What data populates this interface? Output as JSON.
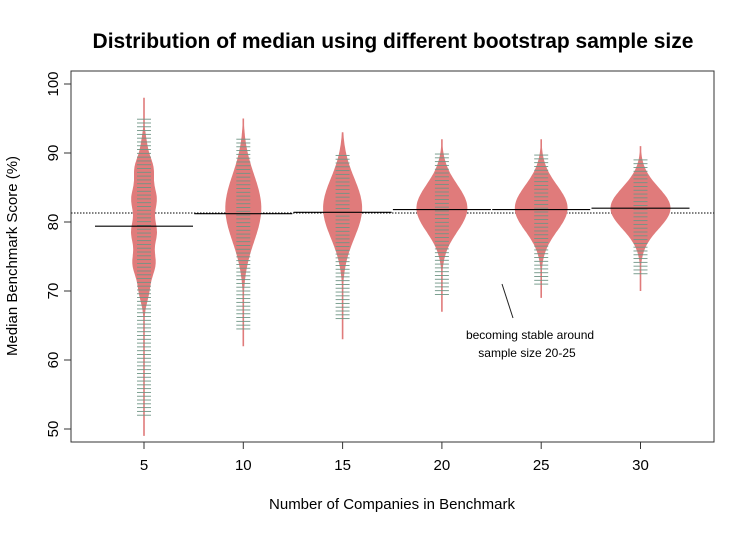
{
  "chart_data": {
    "type": "beanplot",
    "title": "Distribution of median using different bootstrap sample size",
    "xlabel": "Number of Companies in Benchmark",
    "ylabel": "Median Benchmark Score (%)",
    "ylim": [
      48,
      102
    ],
    "yticks": [
      50,
      60,
      70,
      80,
      90,
      100
    ],
    "categories": [
      "5",
      "10",
      "15",
      "20",
      "25",
      "30"
    ],
    "overall_median": 81.3,
    "grid": false,
    "groups": [
      {
        "category": "5",
        "median": 79.4,
        "min": 49,
        "max": 98,
        "center": 80,
        "spread": 9.0,
        "flat": true,
        "peak_density": 0.4,
        "rug": [
          52,
          95
        ]
      },
      {
        "category": "10",
        "median": 81.2,
        "min": 62,
        "max": 95,
        "center": 82,
        "spread": 4.8,
        "flat": false,
        "peak_density": 0.6,
        "rug": [
          64.5,
          92
        ]
      },
      {
        "category": "15",
        "median": 81.4,
        "min": 63,
        "max": 93,
        "center": 82,
        "spread": 4.3,
        "flat": false,
        "peak_density": 0.65,
        "rug": [
          66,
          90
        ]
      },
      {
        "category": "20",
        "median": 81.8,
        "min": 67,
        "max": 92,
        "center": 82,
        "spread": 3.4,
        "flat": false,
        "peak_density": 0.85,
        "rug": [
          69.5,
          90
        ]
      },
      {
        "category": "25",
        "median": 81.8,
        "min": 69,
        "max": 92,
        "center": 82,
        "spread": 3.3,
        "flat": false,
        "peak_density": 0.88,
        "rug": [
          71,
          90
        ]
      },
      {
        "category": "30",
        "median": 82.0,
        "min": 70,
        "max": 91,
        "center": 82,
        "spread": 3.0,
        "flat": false,
        "peak_density": 1.0,
        "rug": [
          72.5,
          89
        ]
      }
    ],
    "annotation": {
      "lines": [
        "becoming  stable around",
        "sample size 20-25"
      ]
    },
    "colors": {
      "bean": "#e07b7b",
      "rug": "#6f9585",
      "median": "#000000"
    }
  }
}
